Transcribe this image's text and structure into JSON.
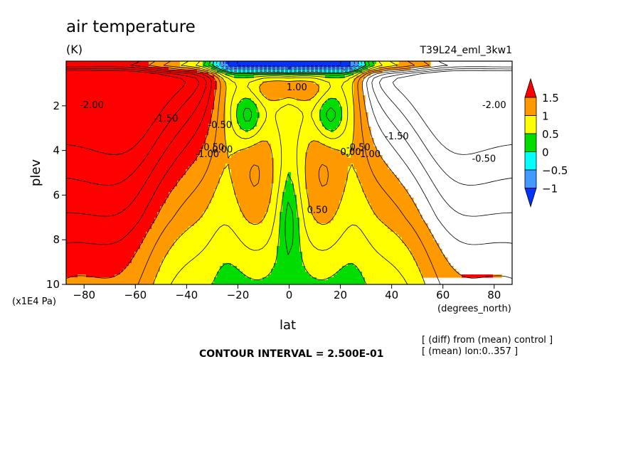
{
  "chart_data": {
    "type": "heatmap",
    "title": "air temperature",
    "units": "(K)",
    "run_name": "T39L24_eml_3kw1",
    "xlabel": "lat",
    "ylabel": "plev",
    "x_unit_label": "(degrees_north)",
    "y_unit_label": "(x1E4 Pa)",
    "xlim": [
      -87,
      87
    ],
    "ylim": [
      10,
      0
    ],
    "x_ticks": [
      -80,
      -60,
      -40,
      -20,
      0,
      20,
      40,
      60,
      80
    ],
    "y_ticks": [
      2,
      4,
      6,
      8,
      10
    ],
    "levels": [
      -1,
      -0.5,
      0,
      0.5,
      1,
      1.5
    ],
    "colorbar_labels": [
      "1.5",
      "1",
      "0.5",
      "0",
      "-0.5",
      "-1"
    ],
    "colors": {
      "gt_1_5": "#ff0000",
      "1_to_1_5": "#ff9900",
      "0_5_to_1": "#ffff00",
      "0_to_0_5": "#00dd00",
      "m0_5_to_0": "#00ffff",
      "m1_to_m0_5": "#4499ff",
      "lt_m1": "#0033ff"
    },
    "contour_labels": [
      {
        "text": "-2.00",
        "lat": -77,
        "plev": 2.1
      },
      {
        "text": "-1.50",
        "lat": -48,
        "plev": 2.7
      },
      {
        "text": "-1.00",
        "lat": -32,
        "plev": 4.3
      },
      {
        "text": "-0.50",
        "lat": -30,
        "plev": 4.0
      },
      {
        "text": "0.00",
        "lat": -26,
        "plev": 4.1
      },
      {
        "text": "-0.50",
        "lat": -27,
        "plev": 3.0
      },
      {
        "text": "1.00",
        "lat": 3,
        "plev": 1.3
      },
      {
        "text": "0.50",
        "lat": 11,
        "plev": 6.8
      },
      {
        "text": "0.00",
        "lat": 24,
        "plev": 4.2
      },
      {
        "text": "-0.50",
        "lat": 27,
        "plev": 4.0
      },
      {
        "text": "-1.00",
        "lat": 31,
        "plev": 4.3
      },
      {
        "text": "-1.50",
        "lat": 42,
        "plev": 3.5
      },
      {
        "text": "-2.00",
        "lat": 80,
        "plev": 2.1
      },
      {
        "text": "-0.50",
        "lat": 76,
        "plev": 4.5
      }
    ],
    "contour_interval": "CONTOUR INTERVAL = 2.500E-01",
    "notes": [
      "[ (diff) from (mean) control ]",
      "[ (mean) lon:0..357 ]"
    ]
  }
}
